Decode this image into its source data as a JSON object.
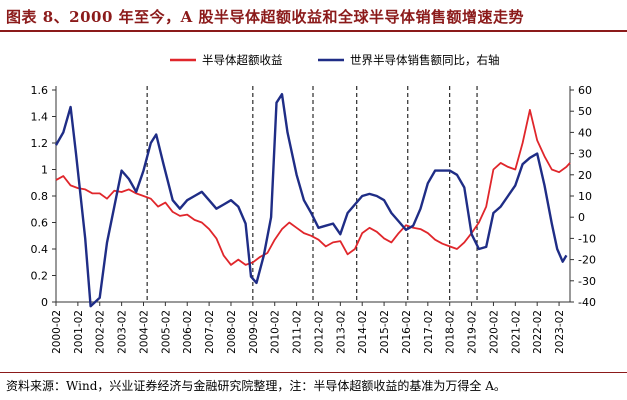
{
  "figure": {
    "title": "图表 8、2000 年至今，A 股半导体超额收益和全球半导体销售额增速走势",
    "source": "资料来源：Wind，兴业证券经济与金融研究院整理，注：半导体超额收益的基准为万得全 A。",
    "colors": {
      "title": "#8b1a1a",
      "excess": "#e0262b",
      "sales": "#1f2d86"
    }
  },
  "chart_data": {
    "type": "line",
    "title": "",
    "x_start": "2000-02",
    "x_end": "2023-08",
    "x_tick_labels": [
      "2000-02",
      "2001-02",
      "2002-02",
      "2003-02",
      "2004-02",
      "2005-02",
      "2006-02",
      "2007-02",
      "2008-02",
      "2009-02",
      "2010-02",
      "2011-02",
      "2012-02",
      "2013-02",
      "2014-02",
      "2015-02",
      "2016-02",
      "2017-02",
      "2018-02",
      "2019-02",
      "2020-02",
      "2021-02",
      "2022-02",
      "2023-02"
    ],
    "y_left": {
      "min": 0,
      "max": 1.6,
      "ticks": [
        "0",
        "0.2",
        "0.4",
        "0.6",
        "0.8",
        "1",
        "1.2",
        "1.4",
        "1.6"
      ],
      "tick_values": [
        0,
        0.2,
        0.4,
        0.6,
        0.8,
        1.0,
        1.2,
        1.4,
        1.6
      ]
    },
    "y_right": {
      "min": -40,
      "max": 60,
      "ticks": [
        "-40",
        "-30",
        "-20",
        "-10",
        "0",
        "10",
        "20",
        "30",
        "40",
        "50",
        "60"
      ],
      "tick_values": [
        -40,
        -30,
        -20,
        -10,
        0,
        10,
        20,
        30,
        40,
        50,
        60
      ]
    },
    "vertical_lines": [
      "2004-04",
      "2009-02",
      "2011-11",
      "2013-11",
      "2016-03",
      "2018-02",
      "2019-05"
    ],
    "legend": {
      "placement": "top-center"
    },
    "series": [
      {
        "name": "半导体超额收益",
        "axis": "left",
        "color": "#e0262b",
        "points": [
          [
            "2000-02",
            0.92
          ],
          [
            "2000-06",
            0.95
          ],
          [
            "2000-10",
            0.88
          ],
          [
            "2001-02",
            0.86
          ],
          [
            "2001-06",
            0.85
          ],
          [
            "2001-10",
            0.82
          ],
          [
            "2002-02",
            0.82
          ],
          [
            "2002-06",
            0.78
          ],
          [
            "2002-10",
            0.84
          ],
          [
            "2003-02",
            0.83
          ],
          [
            "2003-06",
            0.85
          ],
          [
            "2003-10",
            0.82
          ],
          [
            "2004-02",
            0.8
          ],
          [
            "2004-06",
            0.78
          ],
          [
            "2004-10",
            0.72
          ],
          [
            "2005-02",
            0.75
          ],
          [
            "2005-06",
            0.68
          ],
          [
            "2005-10",
            0.65
          ],
          [
            "2006-02",
            0.66
          ],
          [
            "2006-06",
            0.62
          ],
          [
            "2006-10",
            0.6
          ],
          [
            "2007-02",
            0.55
          ],
          [
            "2007-06",
            0.48
          ],
          [
            "2007-10",
            0.35
          ],
          [
            "2008-02",
            0.28
          ],
          [
            "2008-06",
            0.32
          ],
          [
            "2008-10",
            0.28
          ],
          [
            "2009-02",
            0.3
          ],
          [
            "2009-06",
            0.34
          ],
          [
            "2009-10",
            0.37
          ],
          [
            "2010-02",
            0.47
          ],
          [
            "2010-06",
            0.55
          ],
          [
            "2010-10",
            0.6
          ],
          [
            "2011-02",
            0.56
          ],
          [
            "2011-06",
            0.52
          ],
          [
            "2011-10",
            0.5
          ],
          [
            "2012-02",
            0.47
          ],
          [
            "2012-06",
            0.42
          ],
          [
            "2012-10",
            0.45
          ],
          [
            "2013-02",
            0.46
          ],
          [
            "2013-06",
            0.36
          ],
          [
            "2013-10",
            0.4
          ],
          [
            "2014-02",
            0.52
          ],
          [
            "2014-06",
            0.56
          ],
          [
            "2014-10",
            0.53
          ],
          [
            "2015-02",
            0.48
          ],
          [
            "2015-06",
            0.45
          ],
          [
            "2015-10",
            0.52
          ],
          [
            "2016-02",
            0.58
          ],
          [
            "2016-06",
            0.56
          ],
          [
            "2016-10",
            0.55
          ],
          [
            "2017-02",
            0.52
          ],
          [
            "2017-06",
            0.47
          ],
          [
            "2017-10",
            0.44
          ],
          [
            "2018-02",
            0.42
          ],
          [
            "2018-06",
            0.4
          ],
          [
            "2018-10",
            0.45
          ],
          [
            "2019-02",
            0.52
          ],
          [
            "2019-06",
            0.6
          ],
          [
            "2019-10",
            0.72
          ],
          [
            "2020-02",
            1.0
          ],
          [
            "2020-06",
            1.05
          ],
          [
            "2020-10",
            1.02
          ],
          [
            "2021-02",
            1.0
          ],
          [
            "2021-06",
            1.2
          ],
          [
            "2021-10",
            1.45
          ],
          [
            "2022-02",
            1.22
          ],
          [
            "2022-06",
            1.1
          ],
          [
            "2022-10",
            1.0
          ],
          [
            "2023-02",
            0.98
          ],
          [
            "2023-06",
            1.02
          ],
          [
            "2023-08",
            1.05
          ]
        ]
      },
      {
        "name": "世界半导体销售额同比，右轴",
        "axis": "right",
        "color": "#1f2d86",
        "points": [
          [
            "2000-02",
            34
          ],
          [
            "2000-06",
            40
          ],
          [
            "2000-10",
            52
          ],
          [
            "2001-01",
            30
          ],
          [
            "2001-06",
            -10
          ],
          [
            "2001-09",
            -42
          ],
          [
            "2002-02",
            -38
          ],
          [
            "2002-06",
            -12
          ],
          [
            "2002-10",
            5
          ],
          [
            "2003-02",
            22
          ],
          [
            "2003-06",
            18
          ],
          [
            "2003-10",
            12
          ],
          [
            "2004-02",
            22
          ],
          [
            "2004-06",
            35
          ],
          [
            "2004-09",
            39
          ],
          [
            "2005-01",
            25
          ],
          [
            "2005-06",
            8
          ],
          [
            "2005-10",
            4
          ],
          [
            "2006-02",
            8
          ],
          [
            "2006-06",
            10
          ],
          [
            "2006-10",
            12
          ],
          [
            "2007-02",
            8
          ],
          [
            "2007-06",
            4
          ],
          [
            "2007-10",
            6
          ],
          [
            "2008-02",
            8
          ],
          [
            "2008-06",
            5
          ],
          [
            "2008-10",
            -3
          ],
          [
            "2009-01",
            -28
          ],
          [
            "2009-04",
            -31
          ],
          [
            "2009-08",
            -18
          ],
          [
            "2009-12",
            0
          ],
          [
            "2010-03",
            54
          ],
          [
            "2010-06",
            58
          ],
          [
            "2010-09",
            40
          ],
          [
            "2011-02",
            20
          ],
          [
            "2011-06",
            8
          ],
          [
            "2011-10",
            2
          ],
          [
            "2012-02",
            -5
          ],
          [
            "2012-06",
            -4
          ],
          [
            "2012-10",
            -3
          ],
          [
            "2013-02",
            -8
          ],
          [
            "2013-06",
            2
          ],
          [
            "2013-10",
            6
          ],
          [
            "2014-02",
            10
          ],
          [
            "2014-06",
            11
          ],
          [
            "2014-10",
            10
          ],
          [
            "2015-02",
            8
          ],
          [
            "2015-06",
            2
          ],
          [
            "2015-10",
            -2
          ],
          [
            "2016-02",
            -6
          ],
          [
            "2016-06",
            -4
          ],
          [
            "2016-10",
            4
          ],
          [
            "2017-02",
            16
          ],
          [
            "2017-06",
            22
          ],
          [
            "2017-10",
            22
          ],
          [
            "2018-02",
            22
          ],
          [
            "2018-06",
            20
          ],
          [
            "2018-10",
            14
          ],
          [
            "2019-02",
            -8
          ],
          [
            "2019-06",
            -15
          ],
          [
            "2019-10",
            -14
          ],
          [
            "2020-02",
            2
          ],
          [
            "2020-06",
            5
          ],
          [
            "2020-10",
            10
          ],
          [
            "2021-02",
            15
          ],
          [
            "2021-06",
            25
          ],
          [
            "2021-10",
            28
          ],
          [
            "2022-02",
            30
          ],
          [
            "2022-06",
            15
          ],
          [
            "2022-10",
            -3
          ],
          [
            "2023-01",
            -15
          ],
          [
            "2023-04",
            -21
          ],
          [
            "2023-06",
            -18
          ]
        ]
      }
    ]
  }
}
